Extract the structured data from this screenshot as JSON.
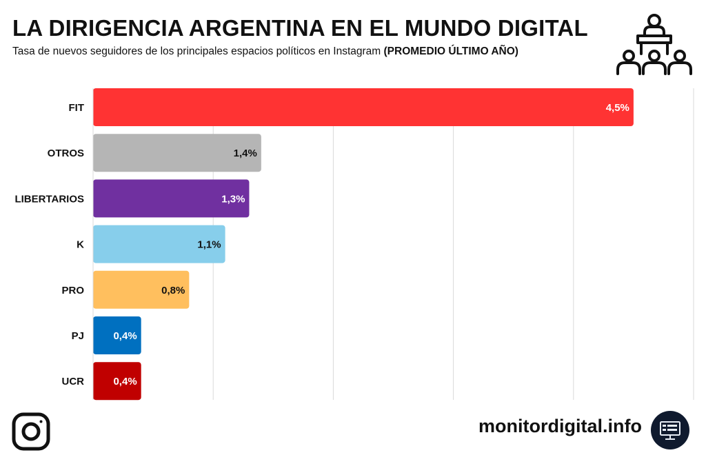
{
  "header": {
    "title": "LA DIRIGENCIA ARGENTINA EN EL MUNDO DIGITAL",
    "subtitle_main": "Tasa de nuevos seguidores de los principales espacios políticos en Instagram ",
    "subtitle_bold": "(PROMEDIO ÚLTIMO AÑO)",
    "icon": "politician-podium-audience-icon"
  },
  "chart_data": {
    "type": "bar",
    "orientation": "horizontal",
    "categories": [
      "FIT",
      "OTROS",
      "LIBERTARIOS",
      "K",
      "PRO",
      "PJ",
      "UCR"
    ],
    "values": [
      4.5,
      1.4,
      1.3,
      1.1,
      0.8,
      0.4,
      0.4
    ],
    "value_labels": [
      "4,5%",
      "1,4%",
      "1,3%",
      "1,1%",
      "0,8%",
      "0,4%",
      "0,4%"
    ],
    "colors": [
      "#ff3333",
      "#b5b5b5",
      "#7030a0",
      "#87ceeb",
      "#ffbf5e",
      "#0070c0",
      "#c00000"
    ],
    "label_colors": [
      "#ffffff",
      "#111111",
      "#ffffff",
      "#111111",
      "#111111",
      "#ffffff",
      "#ffffff"
    ],
    "xlim": [
      0,
      5
    ],
    "grid": true
  },
  "footer": {
    "social_icon": "instagram-icon",
    "brand": "monitordigital.info",
    "brand_icon": "monitor-dashboard-icon"
  }
}
